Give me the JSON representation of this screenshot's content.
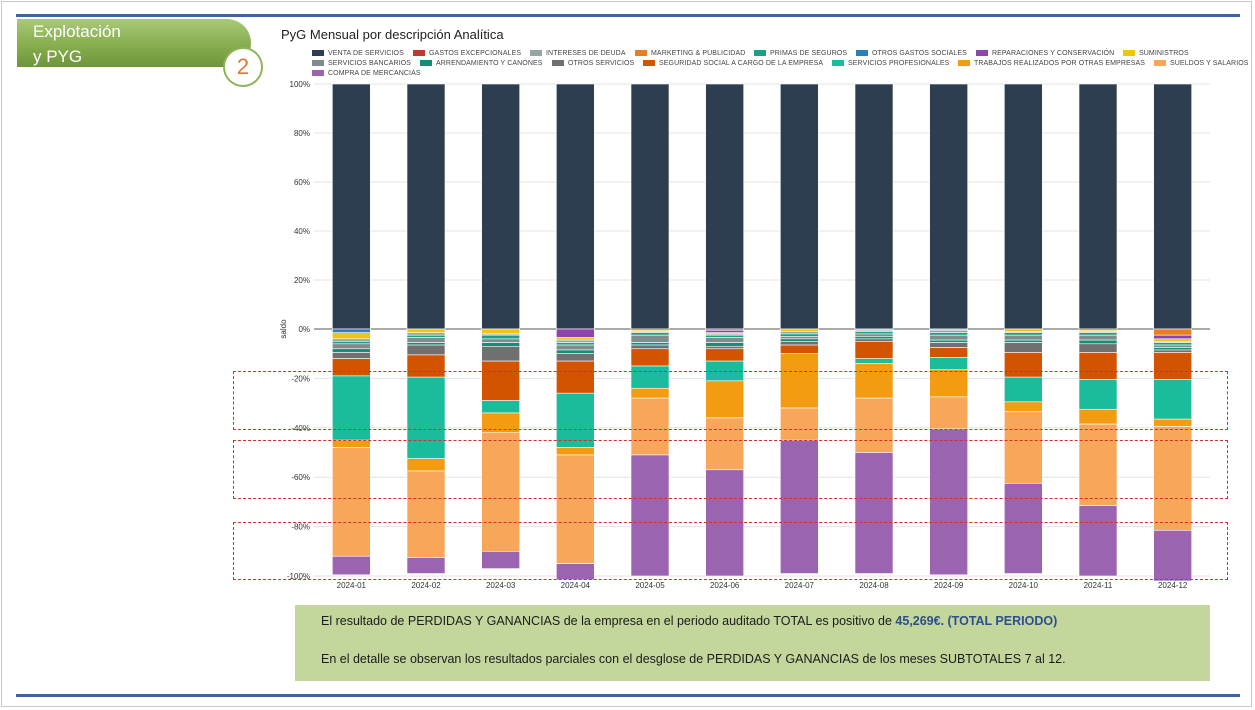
{
  "header": {
    "section_line1": "Explotación",
    "section_line2": "y PYG",
    "section_number": "2"
  },
  "chart_title": "PyG Mensual por descripción Analítica",
  "legend": [
    {
      "label": "VENTA DE SERVICIOS",
      "color": "#2c3e50"
    },
    {
      "label": "GASTOS EXCEPCIONALES",
      "color": "#c0392b"
    },
    {
      "label": "INTERESES DE DEUDA",
      "color": "#95a5a6"
    },
    {
      "label": "MARKETING & PUBLICIDAD",
      "color": "#e67e22"
    },
    {
      "label": "PRIMAS DE SEGUROS",
      "color": "#16a085"
    },
    {
      "label": "OTROS GASTOS SOCIALES",
      "color": "#2980b9"
    },
    {
      "label": "REPARACIONES Y CONSERVACIÓN",
      "color": "#8e44ad"
    },
    {
      "label": "SUMINISTROS",
      "color": "#f1c40f"
    },
    {
      "label": "SERVICIOS BANCARIOS",
      "color": "#7f8c8d"
    },
    {
      "label": "ARRENDAMIENTO Y CANONES",
      "color": "#138d75"
    },
    {
      "label": "OTROS SERVICIOS",
      "color": "#707070"
    },
    {
      "label": "SEGURIDAD SOCIAL A CARGO DE LA EMPRESA",
      "color": "#d35400"
    },
    {
      "label": "SERVICIOS PROFESIONALES",
      "color": "#1abc9c"
    },
    {
      "label": "TRABAJOS REALIZADOS POR OTRAS EMPRESAS",
      "color": "#f39c12"
    },
    {
      "label": "SUELDOS Y SALARIOS",
      "color": "#f8a75a"
    },
    {
      "label": "COMPRA DE MERCANCIAS",
      "color": "#9b64b0"
    }
  ],
  "chart_data": {
    "type": "bar",
    "stacked": true,
    "normalized": true,
    "title": "PyG Mensual por descripción Analítica",
    "xlabel": "",
    "ylabel": "saldo",
    "ylim": [
      -100,
      100
    ],
    "yticks": [
      "100%",
      "80%",
      "60%",
      "40%",
      "20%",
      "0%",
      "-20%",
      "-40%",
      "-60%",
      "-80%",
      "-100%"
    ],
    "categories": [
      "2024-01",
      "2024-02",
      "2024-03",
      "2024-04",
      "2024-05",
      "2024-06",
      "2024-07",
      "2024-08",
      "2024-09",
      "2024-10",
      "2024-11",
      "2024-12"
    ],
    "series": [
      {
        "name": "VENTA DE SERVICIOS",
        "values": [
          100,
          100,
          100,
          100,
          100,
          100,
          100,
          100,
          100,
          100,
          100,
          100
        ]
      },
      {
        "name": "MARKETING & PUBLICIDAD",
        "values": [
          0,
          0,
          0,
          0,
          0,
          0,
          0,
          0,
          0,
          0,
          0,
          -2.5
        ]
      },
      {
        "name": "OTROS GASTOS SOCIALES",
        "values": [
          -1.5,
          0,
          0,
          0,
          -0.5,
          -0.5,
          0,
          0,
          0,
          0,
          -0.5,
          0
        ]
      },
      {
        "name": "REPARACIONES Y CONSERVACIÓN",
        "values": [
          0,
          0,
          0,
          -3.5,
          0,
          -1,
          0,
          0,
          0,
          0,
          0,
          -1.5
        ]
      },
      {
        "name": "SUMINISTROS",
        "values": [
          -2.5,
          -1.5,
          -2,
          -1,
          -0.5,
          -0.5,
          -1,
          -0.5,
          -0.5,
          -1,
          -0.5,
          -1
        ]
      },
      {
        "name": "INTERESES DE DEUDA",
        "values": [
          -1,
          -1,
          -0.5,
          -1,
          -0.5,
          -0.5,
          -1,
          -0.5,
          -1,
          -0.5,
          -0.5,
          -0.5
        ]
      },
      {
        "name": "PRIMAS DE SEGUROS",
        "values": [
          -1,
          -1,
          -1.5,
          -1,
          -1,
          -1,
          -1,
          -1,
          -1,
          -1,
          -1,
          -1
        ]
      },
      {
        "name": "SERVICIOS BANCARIOS",
        "values": [
          -2,
          -2,
          -1.5,
          -2,
          -3,
          -2,
          -1,
          -1,
          -2,
          -2,
          -2,
          -1
        ]
      },
      {
        "name": "ARRENDAMIENTO Y CANONES",
        "values": [
          -1.5,
          -1,
          -1.5,
          -1.5,
          -1,
          -1.5,
          -1,
          -1,
          -1,
          -1,
          -1.5,
          -1
        ]
      },
      {
        "name": "OTROS SERVICIOS",
        "values": [
          -2.5,
          -4,
          -6,
          -3,
          -1.5,
          -1,
          -1.5,
          -1,
          -2,
          -4,
          -3.5,
          -1
        ]
      },
      {
        "name": "SEGURIDAD SOCIAL A CARGO DE LA EMPRESA",
        "values": [
          -7,
          -9,
          -16,
          -13,
          -7,
          -5,
          -3.5,
          -7,
          -4,
          -10,
          -11,
          -11
        ]
      },
      {
        "name": "SERVICIOS PROFESIONALES",
        "values": [
          -26,
          -33,
          -5,
          -22,
          -9,
          -8,
          0,
          -2,
          -5,
          -10,
          -12,
          -16
        ]
      },
      {
        "name": "TRABAJOS REALIZADOS POR OTRAS EMPRESAS",
        "values": [
          -3,
          -5,
          -8,
          -3,
          -4,
          -15,
          -22,
          -14,
          -11,
          -4,
          -6,
          -3
        ]
      },
      {
        "name": "SUELDOS Y SALARIOS",
        "values": [
          -44,
          -35,
          -48,
          -44,
          -23,
          -21,
          -13,
          -22,
          -13,
          -29,
          -33,
          -42
        ]
      },
      {
        "name": "COMPRA DE MERCANCIAS",
        "values": [
          -7.5,
          -6.5,
          -7,
          -6.5,
          -49,
          -43,
          -54,
          -49,
          -59,
          -36.5,
          -28.5,
          -20.5
        ]
      }
    ]
  },
  "note": {
    "line1_text": "El resultado de PERDIDAS Y GANANCIAS de la empresa en el periodo auditado TOTAL es positivo de ",
    "line1_emph": "45,269€. (TOTAL PERIODO)",
    "line2_text": "En el detalle se observan los resultados parciales con el desglose de PERDIDAS Y GANANCIAS de los meses SUBTOTALES 7 al 12."
  }
}
